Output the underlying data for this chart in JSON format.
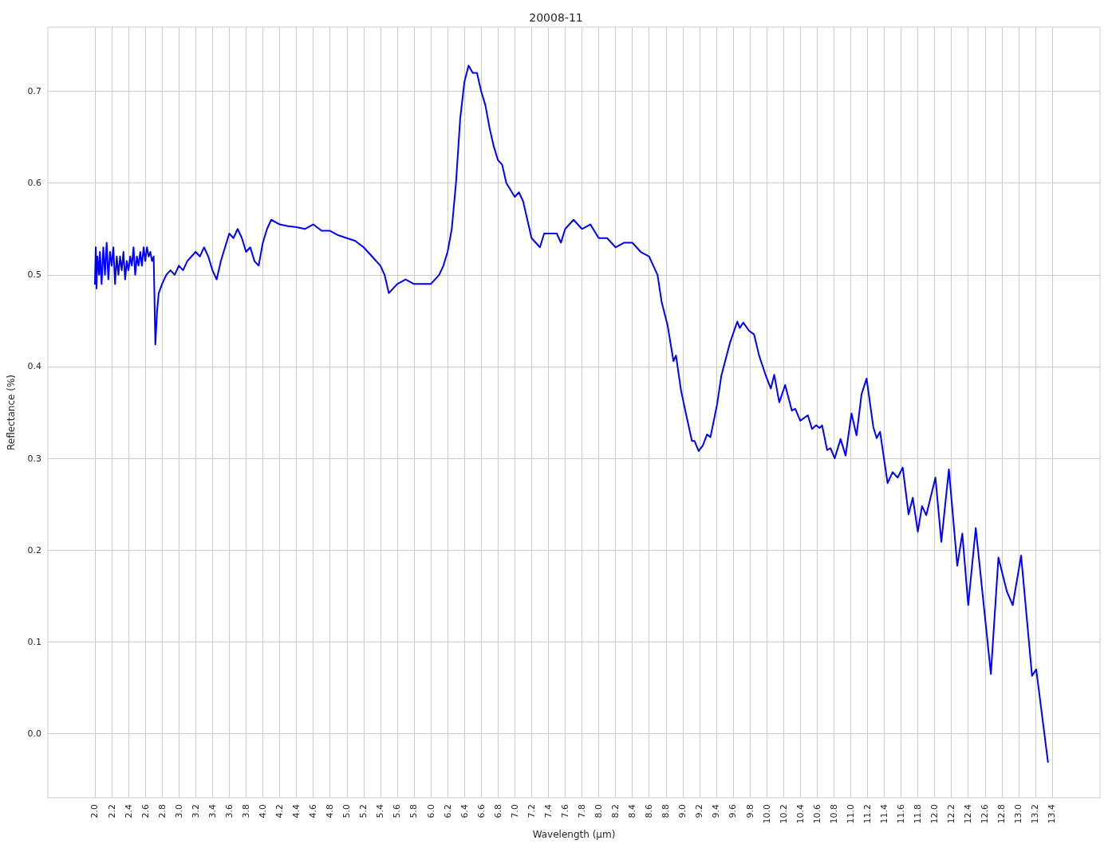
{
  "chart_data": {
    "type": "line",
    "title": "20008-11",
    "xlabel": "Wavelength (µm)",
    "ylabel": "Reflectance (%)",
    "xlim": [
      1.44,
      13.97
    ],
    "ylim": [
      -0.07,
      0.77
    ],
    "xticks": [
      {
        "value": 2,
        "label": "2.0"
      },
      {
        "value": 2.2,
        "label": "2.2"
      },
      {
        "value": 2.4,
        "label": "2.4"
      },
      {
        "value": 2.6,
        "label": "2.6"
      },
      {
        "value": 2.8,
        "label": "2.8"
      },
      {
        "value": 3,
        "label": "3.0"
      },
      {
        "value": 3.2,
        "label": "3.2"
      },
      {
        "value": 3.4,
        "label": "3.4"
      },
      {
        "value": 3.6,
        "label": "3.6"
      },
      {
        "value": 3.8,
        "label": "3.8"
      },
      {
        "value": 4,
        "label": "4.0"
      },
      {
        "value": 4.2,
        "label": "4.2"
      },
      {
        "value": 4.4,
        "label": "4.4"
      },
      {
        "value": 4.6,
        "label": "4.6"
      },
      {
        "value": 4.8,
        "label": "4.8"
      },
      {
        "value": 5,
        "label": "5.0"
      },
      {
        "value": 5.2,
        "label": "5.2"
      },
      {
        "value": 5.4,
        "label": "5.4"
      },
      {
        "value": 5.6,
        "label": "5.6"
      },
      {
        "value": 5.8,
        "label": "5.8"
      },
      {
        "value": 6,
        "label": "6.0"
      },
      {
        "value": 6.2,
        "label": "6.2"
      },
      {
        "value": 6.4,
        "label": "6.4"
      },
      {
        "value": 6.6,
        "label": "6.6"
      },
      {
        "value": 6.8,
        "label": "6.8"
      },
      {
        "value": 7,
        "label": "7.0"
      },
      {
        "value": 7.2,
        "label": "7.2"
      },
      {
        "value": 7.4,
        "label": "7.4"
      },
      {
        "value": 7.6,
        "label": "7.6"
      },
      {
        "value": 7.8,
        "label": "7.8"
      },
      {
        "value": 8,
        "label": "8.0"
      },
      {
        "value": 8.2,
        "label": "8.2"
      },
      {
        "value": 8.4,
        "label": "8.4"
      },
      {
        "value": 8.6,
        "label": "8.6"
      },
      {
        "value": 8.8,
        "label": "8.8"
      },
      {
        "value": 9,
        "label": "9.0"
      },
      {
        "value": 9.2,
        "label": "9.2"
      },
      {
        "value": 9.4,
        "label": "9.4"
      },
      {
        "value": 9.6,
        "label": "9.6"
      },
      {
        "value": 9.8,
        "label": "9.8"
      },
      {
        "value": 10,
        "label": "10.0"
      },
      {
        "value": 10.2,
        "label": "10.2"
      },
      {
        "value": 10.4,
        "label": "10.4"
      },
      {
        "value": 10.6,
        "label": "10.6"
      },
      {
        "value": 10.8,
        "label": "10.8"
      },
      {
        "value": 11,
        "label": "11.0"
      },
      {
        "value": 11.2,
        "label": "11.2"
      },
      {
        "value": 11.4,
        "label": "11.4"
      },
      {
        "value": 11.6,
        "label": "11.6"
      },
      {
        "value": 11.8,
        "label": "11.8"
      },
      {
        "value": 12,
        "label": "12.0"
      },
      {
        "value": 12.2,
        "label": "12.2"
      },
      {
        "value": 12.4,
        "label": "12.4"
      },
      {
        "value": 12.6,
        "label": "12.6"
      },
      {
        "value": 12.8,
        "label": "12.8"
      },
      {
        "value": 13,
        "label": "13.0"
      },
      {
        "value": 13.2,
        "label": "13.2"
      },
      {
        "value": 13.4,
        "label": "13.4"
      }
    ],
    "yticks": [
      {
        "value": 0,
        "label": "0.0"
      },
      0.1,
      0.2,
      0.3,
      0.4,
      0.5,
      0.6,
      0.7
    ],
    "grid": true,
    "marker": "none",
    "line_style": "solid",
    "series": [
      {
        "color": "#0000ff",
        "x": [
          2.0,
          2.01,
          2.02,
          2.03,
          2.05,
          2.06,
          2.08,
          2.1,
          2.12,
          2.14,
          2.16,
          2.18,
          2.2,
          2.22,
          2.24,
          2.26,
          2.28,
          2.3,
          2.32,
          2.34,
          2.36,
          2.38,
          2.4,
          2.42,
          2.44,
          2.46,
          2.48,
          2.5,
          2.52,
          2.54,
          2.56,
          2.58,
          2.6,
          2.62,
          2.64,
          2.66,
          2.68,
          2.7,
          2.72,
          2.74,
          2.76,
          2.8,
          2.85,
          2.9,
          2.95,
          3.0,
          3.05,
          3.1,
          3.15,
          3.2,
          3.25,
          3.3,
          3.35,
          3.4,
          3.45,
          3.5,
          3.55,
          3.6,
          3.65,
          3.7,
          3.75,
          3.8,
          3.85,
          3.9,
          3.95,
          4.0,
          4.05,
          4.1,
          4.2,
          4.3,
          4.4,
          4.5,
          4.6,
          4.7,
          4.8,
          4.9,
          5.0,
          5.1,
          5.2,
          5.3,
          5.4,
          5.45,
          5.5,
          5.55,
          5.6,
          5.7,
          5.8,
          5.9,
          6.0,
          6.1,
          6.15,
          6.2,
          6.25,
          6.3,
          6.35,
          6.4,
          6.45,
          6.5,
          6.55,
          6.6,
          6.65,
          6.7,
          6.75,
          6.8,
          6.85,
          6.9,
          7.0,
          7.05,
          7.1,
          7.15,
          7.2,
          7.3,
          7.35,
          7.4,
          7.5,
          7.55,
          7.6,
          7.7,
          7.8,
          7.9,
          8.0,
          8.1,
          8.2,
          8.3,
          8.4,
          8.5,
          8.6,
          8.7,
          8.75,
          8.82,
          8.89,
          8.92,
          8.98,
          9.04,
          9.11,
          9.14,
          9.19,
          9.24,
          9.29,
          9.33,
          9.41,
          9.46,
          9.56,
          9.65,
          9.68,
          9.72,
          9.79,
          9.85,
          9.91,
          9.99,
          10.05,
          10.09,
          10.15,
          10.22,
          10.3,
          10.34,
          10.4,
          10.49,
          10.54,
          10.59,
          10.63,
          10.66,
          10.72,
          10.76,
          10.81,
          10.88,
          10.94,
          11.01,
          11.07,
          11.13,
          11.19,
          11.27,
          11.31,
          11.35,
          11.44,
          11.5,
          11.56,
          11.62,
          11.69,
          11.74,
          11.8,
          11.85,
          11.9,
          12.01,
          12.08,
          12.17,
          12.27,
          12.33,
          12.4,
          12.49,
          12.67,
          12.76,
          12.86,
          12.93,
          13.03,
          13.16,
          13.21,
          13.35
        ],
        "values": [
          0.49,
          0.53,
          0.485,
          0.52,
          0.5,
          0.525,
          0.49,
          0.53,
          0.5,
          0.535,
          0.495,
          0.525,
          0.51,
          0.53,
          0.49,
          0.52,
          0.5,
          0.52,
          0.505,
          0.525,
          0.495,
          0.515,
          0.505,
          0.52,
          0.51,
          0.53,
          0.5,
          0.52,
          0.51,
          0.525,
          0.51,
          0.53,
          0.515,
          0.53,
          0.52,
          0.525,
          0.515,
          0.52,
          0.424,
          0.46,
          0.48,
          0.49,
          0.5,
          0.505,
          0.5,
          0.51,
          0.505,
          0.515,
          0.52,
          0.525,
          0.52,
          0.53,
          0.52,
          0.505,
          0.495,
          0.515,
          0.53,
          0.545,
          0.54,
          0.55,
          0.54,
          0.525,
          0.53,
          0.515,
          0.51,
          0.535,
          0.55,
          0.56,
          0.555,
          0.553,
          0.552,
          0.55,
          0.555,
          0.548,
          0.548,
          0.543,
          0.54,
          0.537,
          0.53,
          0.52,
          0.51,
          0.5,
          0.48,
          0.485,
          0.49,
          0.495,
          0.49,
          0.49,
          0.49,
          0.5,
          0.51,
          0.525,
          0.55,
          0.6,
          0.67,
          0.71,
          0.728,
          0.72,
          0.72,
          0.7,
          0.685,
          0.66,
          0.64,
          0.625,
          0.62,
          0.6,
          0.585,
          0.59,
          0.58,
          0.56,
          0.54,
          0.53,
          0.545,
          0.545,
          0.545,
          0.535,
          0.55,
          0.56,
          0.55,
          0.555,
          0.54,
          0.54,
          0.53,
          0.535,
          0.535,
          0.525,
          0.52,
          0.5,
          0.47,
          0.445,
          0.406,
          0.412,
          0.374,
          0.348,
          0.319,
          0.319,
          0.308,
          0.314,
          0.326,
          0.323,
          0.359,
          0.39,
          0.425,
          0.449,
          0.442,
          0.448,
          0.439,
          0.435,
          0.412,
          0.39,
          0.376,
          0.391,
          0.361,
          0.38,
          0.352,
          0.354,
          0.341,
          0.347,
          0.332,
          0.336,
          0.333,
          0.336,
          0.309,
          0.311,
          0.3,
          0.321,
          0.303,
          0.349,
          0.325,
          0.37,
          0.387,
          0.334,
          0.322,
          0.329,
          0.273,
          0.285,
          0.279,
          0.29,
          0.239,
          0.257,
          0.22,
          0.248,
          0.238,
          0.279,
          0.209,
          0.288,
          0.183,
          0.218,
          0.14,
          0.224,
          0.065,
          0.192,
          0.155,
          0.14,
          0.194,
          0.063,
          0.07,
          -0.031
        ]
      }
    ]
  }
}
